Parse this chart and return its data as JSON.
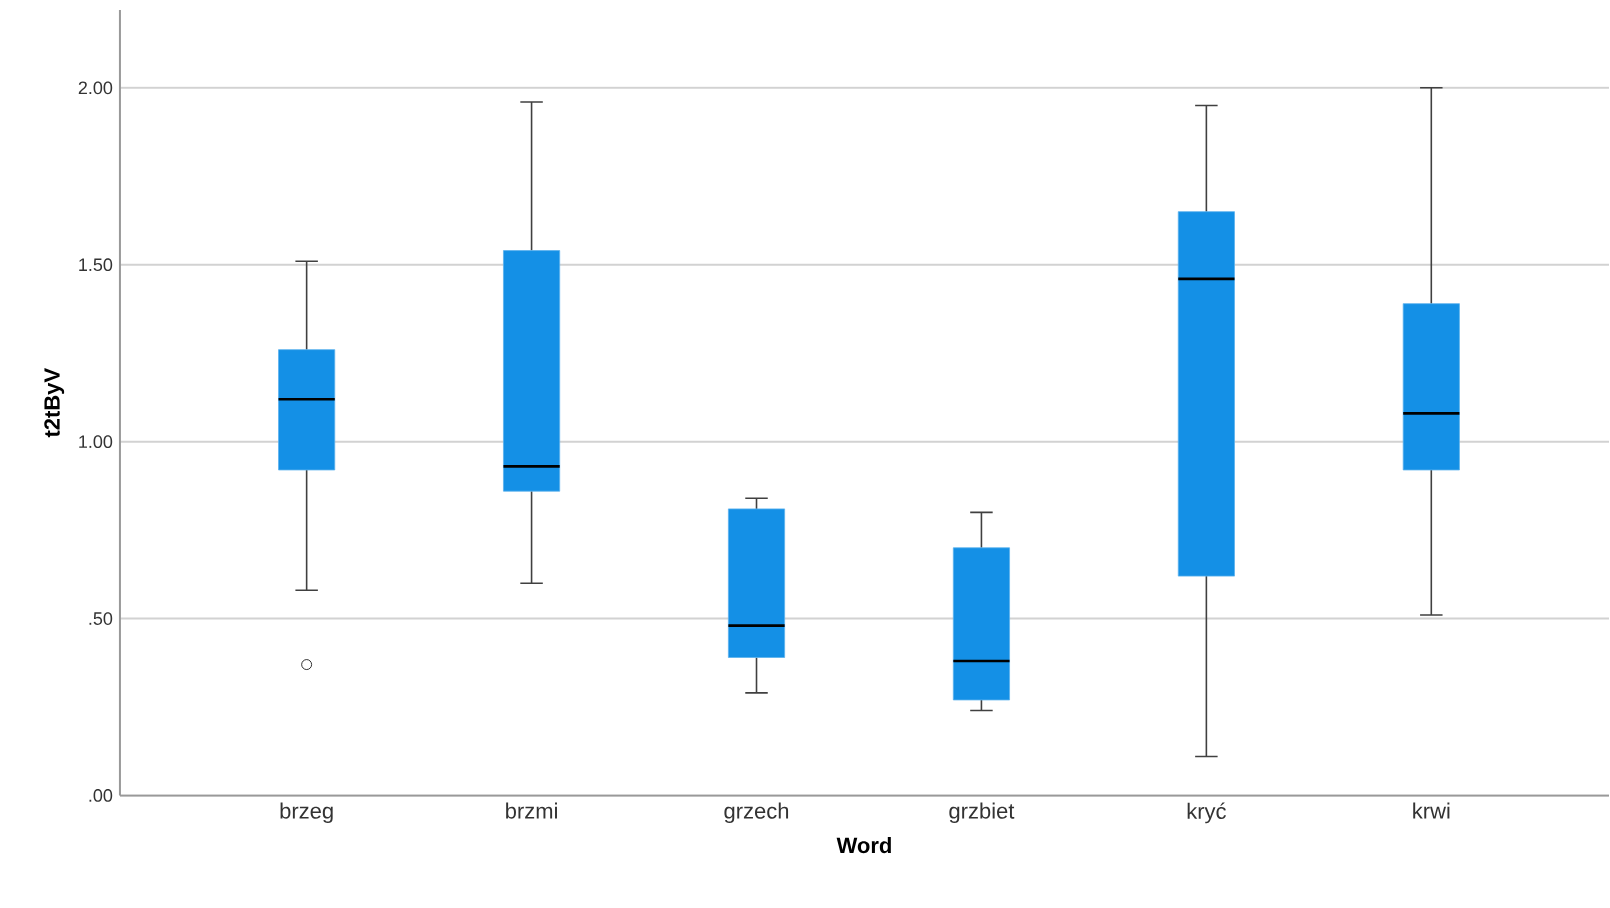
{
  "chart_data": {
    "type": "box",
    "xlabel": "Word",
    "ylabel": "t2tByV",
    "categories": [
      "brzeg",
      "brzmi",
      "grzech",
      "grzbiet",
      "kryć",
      "krwi"
    ],
    "boxes": [
      {
        "low": 0.58,
        "q1": 0.92,
        "median": 1.12,
        "q3": 1.26,
        "high": 1.51,
        "outliers": [
          0.37
        ]
      },
      {
        "low": 0.6,
        "q1": 0.86,
        "median": 0.93,
        "q3": 1.54,
        "high": 1.96
      },
      {
        "low": 0.29,
        "q1": 0.39,
        "median": 0.48,
        "q3": 0.81,
        "high": 0.84
      },
      {
        "low": 0.24,
        "q1": 0.27,
        "median": 0.38,
        "q3": 0.7,
        "high": 0.8
      },
      {
        "low": 0.11,
        "q1": 0.62,
        "median": 1.46,
        "q3": 1.65,
        "high": 1.95
      },
      {
        "low": 0.51,
        "q1": 0.92,
        "median": 1.08,
        "q3": 1.39,
        "high": 2.0
      }
    ],
    "color": "#1490e6",
    "ylim": [
      0,
      2.22
    ],
    "yticks": [
      {
        "value": 0,
        "label": ".00"
      },
      {
        "value": 0.5,
        "label": ".50"
      },
      {
        "value": 1,
        "label": "1.00"
      },
      {
        "value": 1.5,
        "label": "1.50"
      },
      {
        "value": 2,
        "label": "2.00"
      }
    ],
    "grid": "y"
  }
}
